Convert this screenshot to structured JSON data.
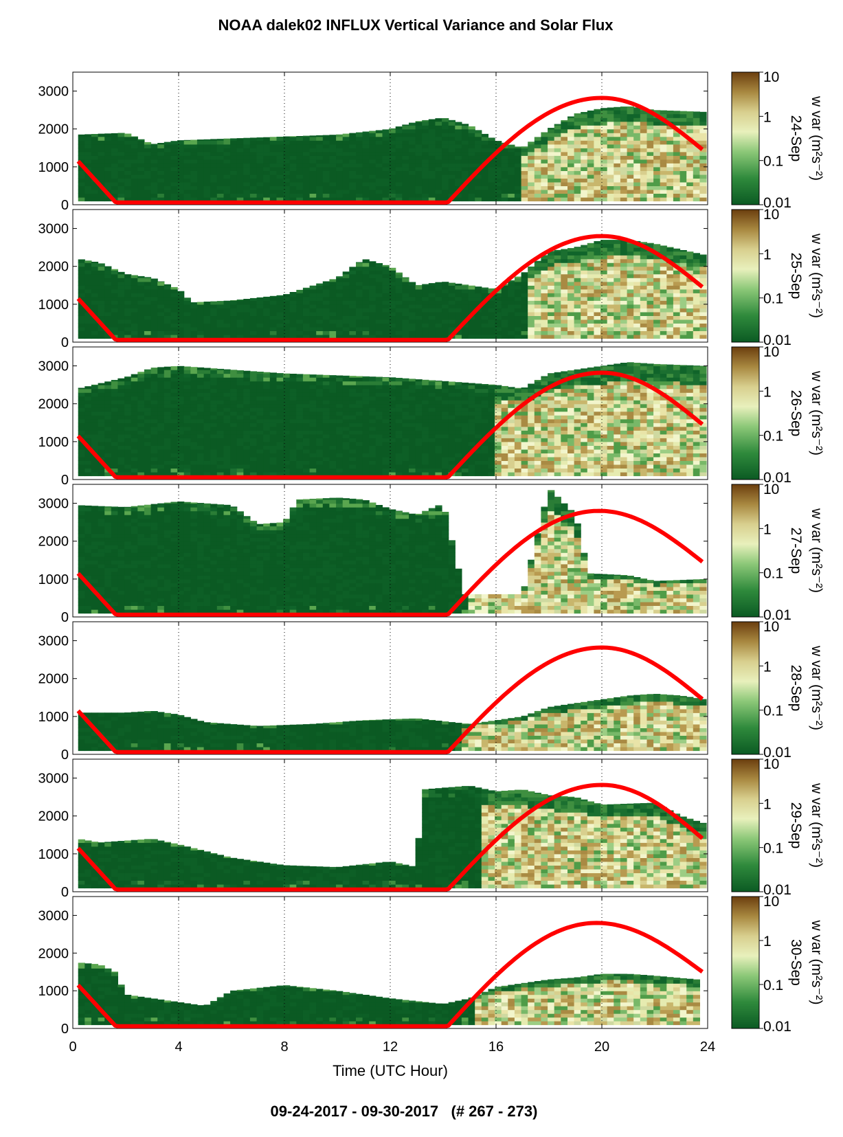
{
  "title": "NOAA dalek02 INFLUX Vertical Variance and Solar Flux",
  "footer": "09-24-2017 - 09-30-2017   (# 267 - 273)",
  "chart_data": {
    "type": "heatmap",
    "title": "NOAA dalek02 INFLUX Vertical Variance and Solar Flux",
    "xlabel": "Time (UTC Hour)",
    "xlim": [
      0,
      24
    ],
    "xticks": [
      0,
      4,
      8,
      12,
      16,
      20,
      24
    ],
    "ylim": [
      0,
      3500
    ],
    "yticks": [
      0,
      1000,
      2000,
      3000
    ],
    "vertical_gridlines_at": [
      4,
      8,
      12,
      16,
      20
    ],
    "colorbar": {
      "label": "w var (m²s⁻²)",
      "scale": "log",
      "ticks": [
        "10",
        "1",
        "0.1",
        "0.01"
      ],
      "colors": [
        "#704010",
        "#b89a50",
        "#e6ebb0",
        "#78b868",
        "#0b5a23"
      ]
    },
    "solar_flux_color": "#ff0000",
    "panels": [
      {
        "date": "24-Sep",
        "top": [
          [
            0.2,
            1850
          ],
          [
            2,
            1900
          ],
          [
            3,
            1600
          ],
          [
            4,
            1700
          ],
          [
            6,
            1750
          ],
          [
            8,
            1800
          ],
          [
            10,
            1850
          ],
          [
            12,
            2000
          ],
          [
            13,
            2200
          ],
          [
            14,
            2300
          ],
          [
            15,
            2100
          ],
          [
            16,
            1700
          ],
          [
            17,
            1500
          ],
          [
            18,
            2000
          ],
          [
            19,
            2400
          ],
          [
            20,
            2550
          ],
          [
            21,
            2600
          ],
          [
            22,
            2500
          ],
          [
            23.9,
            2450
          ]
        ],
        "bright_from": 16.8,
        "solar_peak": 2820,
        "solar_peak_hour": 20,
        "solar_end": 1400
      },
      {
        "date": "25-Sep",
        "top": [
          [
            0.2,
            2200
          ],
          [
            1,
            2100
          ],
          [
            2,
            1800
          ],
          [
            3,
            1700
          ],
          [
            4,
            1400
          ],
          [
            4.5,
            1050
          ],
          [
            6,
            1100
          ],
          [
            8,
            1250
          ],
          [
            10,
            1700
          ],
          [
            11,
            2200
          ],
          [
            12,
            2000
          ],
          [
            13,
            1500
          ],
          [
            14,
            1600
          ],
          [
            15,
            1500
          ],
          [
            16,
            1400
          ],
          [
            17,
            1800
          ],
          [
            18,
            2400
          ],
          [
            19,
            2500
          ],
          [
            20,
            2700
          ],
          [
            21,
            2700
          ],
          [
            22,
            2600
          ],
          [
            23.9,
            2300
          ]
        ],
        "bright_from": 17,
        "solar_peak": 2800,
        "solar_peak_hour": 20,
        "solar_end": 1400
      },
      {
        "date": "26-Sep",
        "top": [
          [
            0.2,
            2400
          ],
          [
            2,
            2700
          ],
          [
            3,
            2950
          ],
          [
            4,
            3000
          ],
          [
            6,
            2900
          ],
          [
            8,
            2800
          ],
          [
            10,
            2750
          ],
          [
            12,
            2700
          ],
          [
            14,
            2600
          ],
          [
            16,
            2500
          ],
          [
            17,
            2400
          ],
          [
            18,
            2800
          ],
          [
            19,
            2900
          ],
          [
            20,
            3000
          ],
          [
            21,
            3100
          ],
          [
            22,
            3050
          ],
          [
            23.9,
            3000
          ]
        ],
        "bright_from": 15.8,
        "solar_peak": 2820,
        "solar_peak_hour": 20,
        "solar_end": 1400
      },
      {
        "date": "27-Sep",
        "top": [
          [
            0.2,
            2950
          ],
          [
            2,
            2900
          ],
          [
            4,
            3050
          ],
          [
            6,
            2950
          ],
          [
            7,
            2450
          ],
          [
            8,
            2500
          ],
          [
            8.5,
            3100
          ],
          [
            10,
            3150
          ],
          [
            11,
            3100
          ],
          [
            12,
            2850
          ],
          [
            13,
            2700
          ],
          [
            14,
            3000
          ],
          [
            14.8,
            600
          ],
          [
            16,
            600
          ],
          [
            17,
            600
          ],
          [
            18,
            3400
          ],
          [
            19,
            2700
          ],
          [
            19.5,
            1150
          ],
          [
            21,
            1100
          ],
          [
            22,
            950
          ],
          [
            23.9,
            1000
          ]
        ],
        "bright_from": 14.9,
        "solar_peak": 2800,
        "solar_peak_hour": 19.9,
        "solar_end": 1400
      },
      {
        "date": "28-Sep",
        "top": [
          [
            0.2,
            1100
          ],
          [
            2,
            1100
          ],
          [
            3,
            1150
          ],
          [
            4,
            1050
          ],
          [
            5,
            850
          ],
          [
            7,
            750
          ],
          [
            9,
            800
          ],
          [
            11,
            900
          ],
          [
            13,
            950
          ],
          [
            15,
            800
          ],
          [
            16,
            900
          ],
          [
            17,
            1000
          ],
          [
            18,
            1250
          ],
          [
            20,
            1450
          ],
          [
            21,
            1550
          ],
          [
            22,
            1600
          ],
          [
            23,
            1550
          ],
          [
            23.9,
            1450
          ]
        ],
        "bright_from": 14.5,
        "solar_peak": 2820,
        "solar_peak_hour": 20,
        "solar_end": 1400
      },
      {
        "date": "29-Sep",
        "top": [
          [
            0.2,
            1400
          ],
          [
            1,
            1300
          ],
          [
            2,
            1350
          ],
          [
            3,
            1400
          ],
          [
            4,
            1250
          ],
          [
            6,
            900
          ],
          [
            8,
            700
          ],
          [
            10,
            650
          ],
          [
            12,
            800
          ],
          [
            13,
            650
          ],
          [
            13.2,
            2700
          ],
          [
            15,
            2800
          ],
          [
            16,
            2650
          ],
          [
            17,
            2700
          ],
          [
            18,
            2550
          ],
          [
            19,
            2500
          ],
          [
            20,
            2300
          ],
          [
            22,
            2350
          ],
          [
            23,
            2000
          ],
          [
            23.9,
            1800
          ]
        ],
        "bright_from": 15.3,
        "solar_peak": 2820,
        "solar_peak_hour": 20,
        "solar_end": 1350
      },
      {
        "date": "30-Sep",
        "top": [
          [
            0.2,
            1750
          ],
          [
            1,
            1700
          ],
          [
            1.6,
            1500
          ],
          [
            2,
            900
          ],
          [
            3,
            800
          ],
          [
            4,
            700
          ],
          [
            5,
            600
          ],
          [
            6,
            1000
          ],
          [
            8,
            1150
          ],
          [
            10,
            1000
          ],
          [
            12,
            800
          ],
          [
            14,
            650
          ],
          [
            15,
            800
          ],
          [
            16,
            1100
          ],
          [
            18,
            1300
          ],
          [
            19,
            1350
          ],
          [
            20,
            1450
          ],
          [
            21,
            1450
          ],
          [
            22,
            1400
          ],
          [
            23.6,
            1300
          ]
        ],
        "bright_from": 15.2,
        "solar_peak": 2800,
        "solar_peak_hour": 19.8,
        "solar_end": 1450
      }
    ]
  }
}
